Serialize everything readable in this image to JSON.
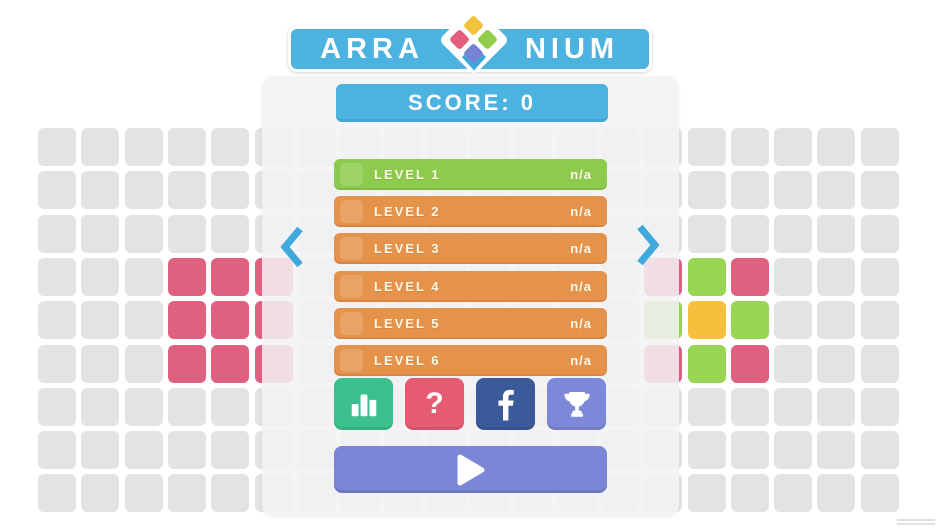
{
  "title": {
    "word_left": "ARRA",
    "word_right": "NIUM",
    "banner_color": "#4cb2e0",
    "diamond_colors": [
      "#f2c33e",
      "#e2607e",
      "#93cc49",
      "#7583d2"
    ]
  },
  "score": {
    "label": "SCORE: 0",
    "color": "#4cb2e0"
  },
  "levels": [
    {
      "label": "LEVEL 1",
      "status": "n/a",
      "color": "#8ccb4d"
    },
    {
      "label": "LEVEL 2",
      "status": "n/a",
      "color": "#e5924b"
    },
    {
      "label": "LEVEL 3",
      "status": "n/a",
      "color": "#e5924b"
    },
    {
      "label": "LEVEL 4",
      "status": "n/a",
      "color": "#e5924b"
    },
    {
      "label": "LEVEL 5",
      "status": "n/a",
      "color": "#e5924b"
    },
    {
      "label": "LEVEL 6",
      "status": "n/a",
      "color": "#e5924b"
    }
  ],
  "nav": {
    "color": "#3fa9dc",
    "prev_icon": "chevron-left-icon",
    "next_icon": "chevron-right-icon"
  },
  "social": [
    {
      "name": "stats",
      "icon": "bar-chart-icon",
      "color": "#3cc18e"
    },
    {
      "name": "help",
      "icon": "question-mark-icon",
      "glyph": "?",
      "color": "#e55c72"
    },
    {
      "name": "facebook",
      "icon": "facebook-icon",
      "color": "#3b5a9a"
    },
    {
      "name": "achievements",
      "icon": "trophy-icon",
      "color": "#7d88d8"
    }
  ],
  "play": {
    "icon": "play-icon",
    "color": "#7b86d6"
  },
  "board": {
    "rows": 9,
    "cols": 20,
    "cell_color": "#e3e3e3",
    "colored_cells": [
      {
        "col": 3,
        "row": 3,
        "color": "#e0617f"
      },
      {
        "col": 4,
        "row": 3,
        "color": "#e0617f"
      },
      {
        "col": 5,
        "row": 3,
        "color": "#e0617f"
      },
      {
        "col": 3,
        "row": 4,
        "color": "#e0617f"
      },
      {
        "col": 4,
        "row": 4,
        "color": "#e0617f"
      },
      {
        "col": 5,
        "row": 4,
        "color": "#e0617f"
      },
      {
        "col": 3,
        "row": 5,
        "color": "#e0617f"
      },
      {
        "col": 4,
        "row": 5,
        "color": "#e0617f"
      },
      {
        "col": 5,
        "row": 5,
        "color": "#e0617f"
      },
      {
        "col": 14,
        "row": 3,
        "color": "#e0617f"
      },
      {
        "col": 15,
        "row": 3,
        "color": "#9ad455"
      },
      {
        "col": 16,
        "row": 3,
        "color": "#e0617f"
      },
      {
        "col": 14,
        "row": 4,
        "color": "#9ad455"
      },
      {
        "col": 15,
        "row": 4,
        "color": "#f6bf3e"
      },
      {
        "col": 16,
        "row": 4,
        "color": "#9ad455"
      },
      {
        "col": 14,
        "row": 5,
        "color": "#e0617f"
      },
      {
        "col": 15,
        "row": 5,
        "color": "#9ad455"
      },
      {
        "col": 16,
        "row": 5,
        "color": "#e0617f"
      }
    ]
  }
}
